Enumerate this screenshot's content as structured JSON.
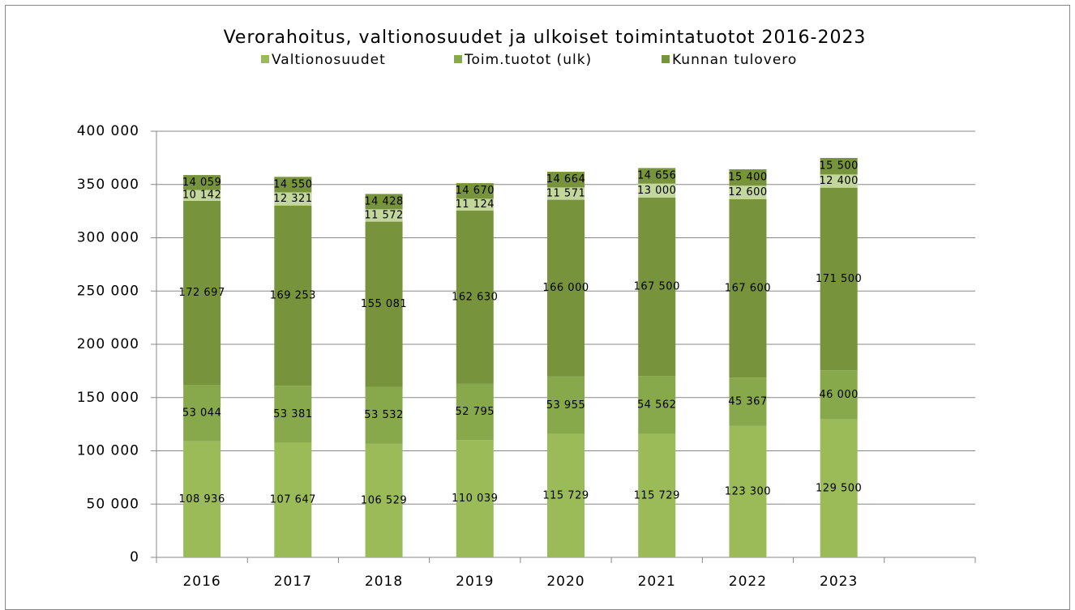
{
  "chart_data": {
    "type": "stacked_bar",
    "title": "Verorahoitus, valtionosuudet ja ulkoiset toimintatuotot 2016-2023",
    "categories": [
      "2016",
      "2017",
      "2018",
      "2019",
      "2020",
      "2021",
      "2022",
      "2023",
      null
    ],
    "series": [
      {
        "name": "Valtionosuudet",
        "color": "#9bbb59",
        "values": [
          108936,
          107647,
          106529,
          110039,
          115729,
          115729,
          123300,
          129500,
          null
        ],
        "value_labels": [
          "108 936",
          "107 647",
          "106 529",
          "110 039",
          "115 729",
          "115 729",
          "123 300",
          "129 500",
          null
        ]
      },
      {
        "name": "Toim.tuotot (ulk)",
        "color": "#88a94b",
        "values": [
          53044,
          53381,
          53532,
          52795,
          53955,
          54562,
          45367,
          46000,
          null
        ],
        "value_labels": [
          "53 044",
          "53 381",
          "53 532",
          "52 795",
          "53 955",
          "54 562",
          "45 367",
          "46 000",
          null
        ]
      },
      {
        "name": "Kunnan tulovero",
        "color": "#77933c",
        "values": [
          172697,
          169253,
          155081,
          162630,
          166000,
          167500,
          167600,
          171500,
          null
        ],
        "value_labels": [
          "172 697",
          "169 253",
          "155 081",
          "162 630",
          "166 000",
          "167 500",
          "167 600",
          "171 500",
          null
        ]
      },
      {
        "color": "#c3d69b",
        "values": [
          10142,
          12321,
          11572,
          11124,
          11571,
          13000,
          12600,
          12400,
          null
        ],
        "value_labels": [
          "10 142",
          "12 321",
          "11 572",
          "11 124",
          "11 571",
          "13 000",
          "12 600",
          "12 400",
          null
        ]
      },
      {
        "color": "#77933c",
        "values": [
          14059,
          14550,
          14428,
          14670,
          14664,
          14656,
          15400,
          15500,
          null
        ],
        "value_labels": [
          "14 059",
          "14 550",
          "14 428",
          "14 670",
          "14 664",
          "14 656",
          "15 400",
          "15 500",
          null
        ]
      }
    ],
    "ylim": [
      0,
      400000
    ],
    "yticks": [
      0,
      {
        "value": 50000,
        "label": "50 000"
      },
      {
        "value": 100000,
        "label": "100 000"
      },
      {
        "value": 150000,
        "label": "150 000"
      },
      {
        "value": 200000,
        "label": "200 000"
      },
      {
        "value": 250000,
        "label": "250 000"
      },
      {
        "value": 300000,
        "label": "300 000"
      },
      {
        "value": 350000,
        "label": "350 000"
      },
      {
        "value": 400000,
        "label": "400 000"
      }
    ],
    "grid": true,
    "legend": "top"
  }
}
